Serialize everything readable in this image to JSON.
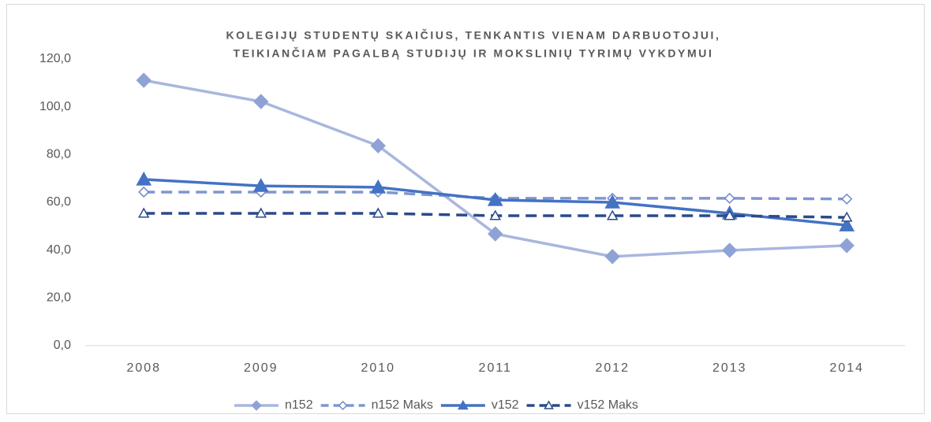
{
  "chart_data": {
    "type": "line",
    "title": [
      "KOLEGIJŲ STUDENTŲ SKAIČIUS, TENKANTIS VIENAM DARBUOTOJUI,",
      "TEIKIANČIAM PAGALBĄ STUDIJŲ IR MOKSLINIŲ TYRIMŲ VYKDYMUI"
    ],
    "categories": [
      "2008",
      "2009",
      "2010",
      "2011",
      "2012",
      "2013",
      "2014"
    ],
    "series": [
      {
        "name": "n152",
        "color": "#a9b7de",
        "marker_color": "#8fa2d5",
        "dash": false,
        "marker": "diamond",
        "marker_filled": true,
        "values": [
          111.1,
          102.2,
          83.7,
          46.8,
          37.3,
          39.9,
          41.9
        ]
      },
      {
        "name": "n152 Maks",
        "color": "#7f96d0",
        "marker_color": "#6f88cc",
        "dash": true,
        "marker": "diamond",
        "marker_filled": false,
        "values": [
          64.3,
          64.3,
          64.3,
          61.7,
          61.7,
          61.7,
          61.4
        ]
      },
      {
        "name": "v152",
        "color": "#4472c4",
        "marker_color": "#4472c4",
        "dash": false,
        "marker": "triangle",
        "marker_filled": true,
        "values": [
          69.6,
          66.9,
          66.3,
          61.0,
          60.0,
          55.4,
          50.4
        ]
      },
      {
        "name": "v152 Maks",
        "color": "#2b4a8a",
        "marker_color": "#2b4a8a",
        "dash": true,
        "marker": "triangle",
        "marker_filled": false,
        "values": [
          55.4,
          55.4,
          55.4,
          54.4,
          54.4,
          54.4,
          53.7
        ]
      }
    ],
    "ylim": [
      0,
      120
    ],
    "yticks": [
      {
        "value": 0,
        "label": "0,0"
      },
      {
        "value": 20,
        "label": "20,0"
      },
      {
        "value": 40,
        "label": "40,0"
      },
      {
        "value": 60,
        "label": "60,0"
      },
      {
        "value": 80,
        "label": "80,0"
      },
      {
        "value": 100,
        "label": "100,0"
      },
      {
        "value": 120,
        "label": "120,0"
      }
    ],
    "grid": false,
    "legend": "bottom"
  }
}
